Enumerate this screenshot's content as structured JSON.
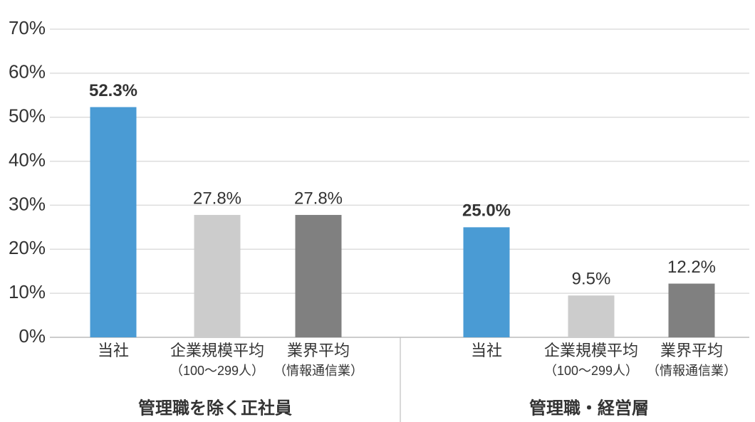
{
  "chart_data": {
    "type": "bar",
    "ylim": [
      0,
      70
    ],
    "yticks": [
      {
        "value": 0,
        "label": "0%"
      },
      {
        "value": 10,
        "label": "10%"
      },
      {
        "value": 20,
        "label": "20%"
      },
      {
        "value": 30,
        "label": "30%"
      },
      {
        "value": 40,
        "label": "40%"
      },
      {
        "value": 50,
        "label": "50%"
      },
      {
        "value": 60,
        "label": "60%"
      },
      {
        "value": 70,
        "label": "70%"
      }
    ],
    "grid": true,
    "colors": [
      "#4a9bd4",
      "#cccccc",
      "#808080"
    ],
    "groups": [
      {
        "name": "管理職を除く正社員",
        "categories": [
          [
            "当社"
          ],
          [
            "企業規模平均",
            "（100〜299人）"
          ],
          [
            "業界平均",
            "（情報通信業）"
          ]
        ],
        "values": [
          52.3,
          27.8,
          27.8
        ],
        "value_labels": [
          "52.3%",
          "27.8%",
          "27.8%"
        ]
      },
      {
        "name": "管理職・経営層",
        "categories": [
          [
            "当社"
          ],
          [
            "企業規模平均",
            "（100〜299人）"
          ],
          [
            "業界平均",
            "（情報通信業）"
          ]
        ],
        "values": [
          25.0,
          9.5,
          12.2
        ],
        "value_labels": [
          "25.0%",
          "9.5%",
          "12.2%"
        ]
      }
    ]
  }
}
